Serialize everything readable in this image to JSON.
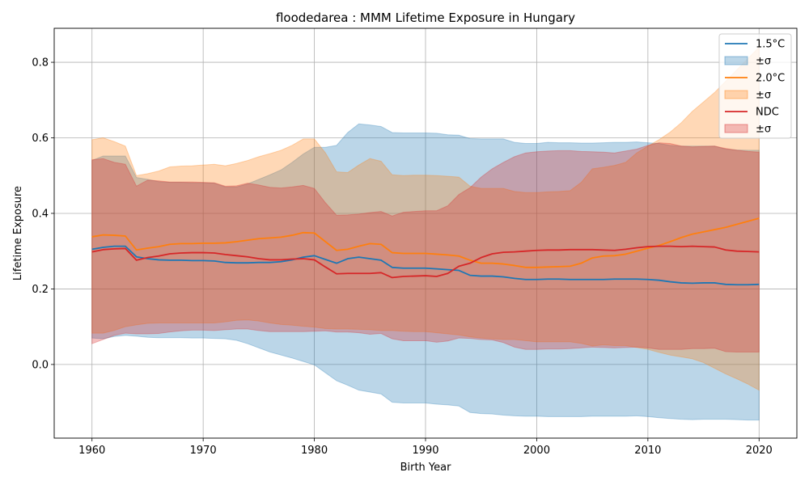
{
  "chart_data": {
    "type": "area",
    "title": "floodedarea : MMM Lifetime Exposure in Hungary",
    "xlabel": "Birth Year",
    "ylabel": "Lifetime Exposure",
    "xlim": [
      1956.6,
      2023.4
    ],
    "ylim": [
      -0.195,
      0.89
    ],
    "xticks": [
      1960,
      1970,
      1980,
      1990,
      2000,
      2010,
      2020
    ],
    "yticks": [
      0.0,
      0.2,
      0.4,
      0.6,
      0.8
    ],
    "xtick_labels": [
      "1960",
      "1970",
      "1980",
      "1990",
      "2000",
      "2010",
      "2020"
    ],
    "ytick_labels": [
      "0.0",
      "0.2",
      "0.4",
      "0.6",
      "0.8"
    ],
    "grid": true,
    "legend_position": "top-right",
    "legend_entries": [
      {
        "label": "1.5°C",
        "kind": "line",
        "series": 0
      },
      {
        "label": "±σ",
        "kind": "band",
        "series": 0
      },
      {
        "label": "2.0°C",
        "kind": "line",
        "series": 1
      },
      {
        "label": "±σ",
        "kind": "band",
        "series": 1
      },
      {
        "label": "NDC",
        "kind": "line",
        "series": 2
      },
      {
        "label": "±σ",
        "kind": "band",
        "series": 2
      }
    ],
    "x": [
      1960,
      1961,
      1962,
      1963,
      1964,
      1965,
      1966,
      1967,
      1968,
      1969,
      1970,
      1971,
      1972,
      1973,
      1974,
      1975,
      1976,
      1977,
      1978,
      1979,
      1980,
      1981,
      1982,
      1983,
      1984,
      1985,
      1986,
      1987,
      1988,
      1989,
      1990,
      1991,
      1992,
      1993,
      1994,
      1995,
      1996,
      1997,
      1998,
      1999,
      2000,
      2001,
      2002,
      2003,
      2004,
      2005,
      2006,
      2007,
      2008,
      2009,
      2010,
      2011,
      2012,
      2013,
      2014,
      2015,
      2016,
      2017,
      2018,
      2019,
      2020
    ],
    "series": [
      {
        "name": "1.5°C",
        "color": "#1f77b4",
        "mean": [
          0.305,
          0.31,
          0.313,
          0.313,
          0.285,
          0.28,
          0.277,
          0.276,
          0.276,
          0.275,
          0.275,
          0.274,
          0.27,
          0.269,
          0.269,
          0.27,
          0.27,
          0.272,
          0.277,
          0.284,
          0.288,
          0.278,
          0.268,
          0.28,
          0.284,
          0.28,
          0.276,
          0.257,
          0.255,
          0.255,
          0.255,
          0.253,
          0.251,
          0.249,
          0.236,
          0.234,
          0.234,
          0.232,
          0.228,
          0.225,
          0.225,
          0.226,
          0.226,
          0.225,
          0.225,
          0.225,
          0.225,
          0.226,
          0.226,
          0.226,
          0.225,
          0.223,
          0.219,
          0.216,
          0.215,
          0.216,
          0.216,
          0.212,
          0.211,
          0.211,
          0.212
        ],
        "upper": [
          0.54,
          0.552,
          0.552,
          0.552,
          0.495,
          0.49,
          0.484,
          0.482,
          0.482,
          0.481,
          0.481,
          0.48,
          0.47,
          0.47,
          0.478,
          0.49,
          0.502,
          0.515,
          0.535,
          0.557,
          0.575,
          0.575,
          0.58,
          0.614,
          0.637,
          0.634,
          0.63,
          0.614,
          0.613,
          0.613,
          0.613,
          0.612,
          0.608,
          0.607,
          0.598,
          0.597,
          0.597,
          0.597,
          0.588,
          0.585,
          0.585,
          0.588,
          0.587,
          0.587,
          0.586,
          0.586,
          0.587,
          0.588,
          0.588,
          0.589,
          0.587,
          0.585,
          0.58,
          0.578,
          0.578,
          0.578,
          0.578,
          0.57,
          0.568,
          0.567,
          0.567
        ],
        "lower": [
          0.07,
          0.068,
          0.074,
          0.077,
          0.075,
          0.072,
          0.071,
          0.071,
          0.071,
          0.07,
          0.07,
          0.069,
          0.068,
          0.064,
          0.055,
          0.044,
          0.033,
          0.025,
          0.017,
          0.008,
          -0.001,
          -0.022,
          -0.043,
          -0.055,
          -0.068,
          -0.073,
          -0.078,
          -0.1,
          -0.102,
          -0.102,
          -0.102,
          -0.105,
          -0.107,
          -0.11,
          -0.127,
          -0.13,
          -0.131,
          -0.134,
          -0.136,
          -0.137,
          -0.137,
          -0.138,
          -0.138,
          -0.138,
          -0.138,
          -0.137,
          -0.137,
          -0.137,
          -0.137,
          -0.136,
          -0.138,
          -0.141,
          -0.143,
          -0.145,
          -0.146,
          -0.145,
          -0.145,
          -0.145,
          -0.146,
          -0.147,
          -0.147
        ]
      },
      {
        "name": "2.0°C",
        "color": "#ff7f0e",
        "mean": [
          0.338,
          0.343,
          0.342,
          0.34,
          0.303,
          0.308,
          0.312,
          0.318,
          0.32,
          0.32,
          0.321,
          0.321,
          0.322,
          0.325,
          0.329,
          0.333,
          0.335,
          0.337,
          0.342,
          0.349,
          0.348,
          0.325,
          0.302,
          0.305,
          0.313,
          0.32,
          0.318,
          0.296,
          0.294,
          0.294,
          0.294,
          0.292,
          0.29,
          0.287,
          0.276,
          0.268,
          0.268,
          0.266,
          0.262,
          0.257,
          0.257,
          0.258,
          0.259,
          0.26,
          0.268,
          0.282,
          0.287,
          0.288,
          0.292,
          0.3,
          0.308,
          0.315,
          0.325,
          0.336,
          0.345,
          0.351,
          0.357,
          0.363,
          0.371,
          0.379,
          0.387
        ],
        "upper": [
          0.595,
          0.6,
          0.59,
          0.578,
          0.5,
          0.505,
          0.512,
          0.523,
          0.525,
          0.526,
          0.528,
          0.53,
          0.526,
          0.532,
          0.54,
          0.55,
          0.558,
          0.567,
          0.58,
          0.597,
          0.597,
          0.56,
          0.51,
          0.508,
          0.528,
          0.545,
          0.538,
          0.502,
          0.5,
          0.501,
          0.501,
          0.5,
          0.498,
          0.496,
          0.472,
          0.466,
          0.466,
          0.466,
          0.458,
          0.455,
          0.455,
          0.457,
          0.458,
          0.46,
          0.482,
          0.518,
          0.522,
          0.527,
          0.535,
          0.56,
          0.578,
          0.595,
          0.615,
          0.64,
          0.67,
          0.695,
          0.72,
          0.75,
          0.78,
          0.81,
          0.84
        ],
        "lower": [
          0.083,
          0.083,
          0.09,
          0.1,
          0.105,
          0.109,
          0.11,
          0.11,
          0.11,
          0.11,
          0.11,
          0.11,
          0.113,
          0.117,
          0.118,
          0.115,
          0.11,
          0.106,
          0.104,
          0.101,
          0.099,
          0.095,
          0.094,
          0.094,
          0.093,
          0.092,
          0.09,
          0.09,
          0.088,
          0.087,
          0.087,
          0.084,
          0.081,
          0.078,
          0.073,
          0.07,
          0.068,
          0.066,
          0.066,
          0.063,
          0.06,
          0.06,
          0.06,
          0.06,
          0.056,
          0.049,
          0.052,
          0.05,
          0.05,
          0.045,
          0.04,
          0.032,
          0.025,
          0.02,
          0.015,
          0.005,
          -0.01,
          -0.025,
          -0.038,
          -0.052,
          -0.068
        ]
      },
      {
        "name": "NDC",
        "color": "#d62728",
        "mean": [
          0.298,
          0.304,
          0.306,
          0.307,
          0.276,
          0.283,
          0.287,
          0.293,
          0.295,
          0.296,
          0.296,
          0.295,
          0.291,
          0.288,
          0.285,
          0.28,
          0.277,
          0.277,
          0.279,
          0.28,
          0.277,
          0.258,
          0.24,
          0.241,
          0.241,
          0.241,
          0.243,
          0.23,
          0.233,
          0.234,
          0.235,
          0.233,
          0.241,
          0.26,
          0.268,
          0.283,
          0.293,
          0.297,
          0.298,
          0.3,
          0.302,
          0.303,
          0.303,
          0.304,
          0.304,
          0.304,
          0.303,
          0.302,
          0.305,
          0.309,
          0.312,
          0.313,
          0.313,
          0.312,
          0.313,
          0.312,
          0.311,
          0.303,
          0.3,
          0.299,
          0.298
        ],
        "upper": [
          0.542,
          0.545,
          0.535,
          0.53,
          0.472,
          0.488,
          0.486,
          0.483,
          0.483,
          0.483,
          0.482,
          0.481,
          0.472,
          0.473,
          0.48,
          0.475,
          0.469,
          0.467,
          0.47,
          0.474,
          0.466,
          0.428,
          0.395,
          0.396,
          0.398,
          0.402,
          0.405,
          0.393,
          0.403,
          0.405,
          0.407,
          0.407,
          0.42,
          0.45,
          0.468,
          0.496,
          0.518,
          0.535,
          0.55,
          0.56,
          0.563,
          0.565,
          0.566,
          0.566,
          0.564,
          0.563,
          0.562,
          0.56,
          0.565,
          0.57,
          0.58,
          0.587,
          0.585,
          0.578,
          0.576,
          0.577,
          0.578,
          0.572,
          0.567,
          0.564,
          0.562
        ],
        "lower": [
          0.055,
          0.066,
          0.077,
          0.083,
          0.081,
          0.081,
          0.082,
          0.086,
          0.089,
          0.091,
          0.091,
          0.09,
          0.092,
          0.094,
          0.094,
          0.09,
          0.087,
          0.087,
          0.087,
          0.087,
          0.088,
          0.089,
          0.086,
          0.086,
          0.084,
          0.08,
          0.082,
          0.068,
          0.063,
          0.063,
          0.063,
          0.059,
          0.062,
          0.07,
          0.069,
          0.066,
          0.065,
          0.058,
          0.046,
          0.04,
          0.04,
          0.041,
          0.041,
          0.042,
          0.044,
          0.046,
          0.045,
          0.044,
          0.045,
          0.046,
          0.044,
          0.04,
          0.04,
          0.04,
          0.042,
          0.042,
          0.043,
          0.034,
          0.033,
          0.033,
          0.033
        ]
      }
    ]
  }
}
